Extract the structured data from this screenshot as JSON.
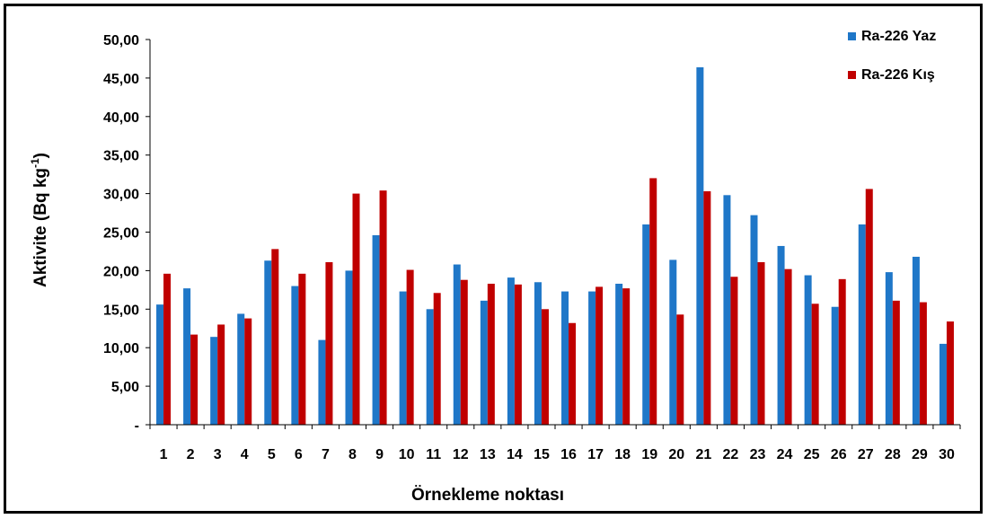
{
  "chart_data": {
    "type": "bar",
    "xlabel": "Örnekleme noktası",
    "ylabel": "Aktivite (Bq kg",
    "ylabel_sup": "-1",
    "ylabel_close": ")",
    "ylim": [
      0,
      50
    ],
    "yticks": [
      "-",
      "5,00",
      "10,00",
      "15,00",
      "20,00",
      "25,00",
      "30,00",
      "35,00",
      "40,00",
      "45,00",
      "50,00"
    ],
    "grid": false,
    "legend_position": "top-right",
    "categories": [
      "1",
      "2",
      "3",
      "4",
      "5",
      "6",
      "7",
      "8",
      "9",
      "10",
      "11",
      "12",
      "13",
      "14",
      "15",
      "16",
      "17",
      "18",
      "19",
      "20",
      "21",
      "22",
      "23",
      "24",
      "25",
      "26",
      "27",
      "28",
      "29",
      "30"
    ],
    "series": [
      {
        "name": "Ra-226 Yaz",
        "color": "#1F77C8",
        "values": [
          15.6,
          17.7,
          11.4,
          14.4,
          21.3,
          18.0,
          11.0,
          20.0,
          24.6,
          17.3,
          15.0,
          20.8,
          16.1,
          19.1,
          18.5,
          17.3,
          17.3,
          18.3,
          26.0,
          21.4,
          46.4,
          29.8,
          27.2,
          23.2,
          19.4,
          15.3,
          26.0,
          19.8,
          21.8,
          10.5
        ]
      },
      {
        "name": "Ra-226 Kış",
        "color": "#C00000",
        "values": [
          19.6,
          11.7,
          13.0,
          13.8,
          22.8,
          19.6,
          21.1,
          30.0,
          30.4,
          20.1,
          17.1,
          18.8,
          18.3,
          18.2,
          15.0,
          13.2,
          17.9,
          17.7,
          32.0,
          14.3,
          30.3,
          19.2,
          21.1,
          20.2,
          15.7,
          18.9,
          30.6,
          16.1,
          15.9,
          13.4
        ]
      }
    ]
  }
}
